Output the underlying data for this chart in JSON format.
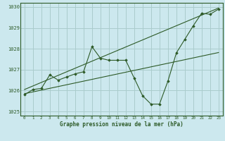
{
  "bg_color": "#cce8ee",
  "grid_color": "#aacccc",
  "line_color": "#2d5a27",
  "title": "Graphe pression niveau de la mer (hPa)",
  "xlim": [
    -0.5,
    23.5
  ],
  "ylim": [
    1024.8,
    1030.2
  ],
  "yticks": [
    1025,
    1026,
    1027,
    1028,
    1029,
    1030
  ],
  "xticks": [
    0,
    1,
    2,
    3,
    4,
    5,
    6,
    7,
    8,
    9,
    10,
    11,
    12,
    13,
    14,
    15,
    16,
    17,
    18,
    19,
    20,
    21,
    22,
    23
  ],
  "data_x": [
    0,
    1,
    2,
    3,
    4,
    5,
    6,
    7,
    8,
    9,
    10,
    11,
    12,
    13,
    14,
    15,
    16,
    17,
    18,
    19,
    20,
    21,
    22,
    23
  ],
  "data_y": [
    1025.8,
    1026.05,
    1026.1,
    1026.75,
    1026.5,
    1026.65,
    1026.8,
    1026.9,
    1028.1,
    1027.55,
    1027.45,
    1027.45,
    1027.45,
    1026.6,
    1025.75,
    1025.35,
    1025.35,
    1026.45,
    1027.8,
    1028.45,
    1029.1,
    1029.7,
    1029.65,
    1029.9
  ],
  "line1_x": [
    0,
    23
  ],
  "line1_y": [
    1026.05,
    1029.95
  ],
  "line2_x": [
    0,
    23
  ],
  "line2_y": [
    1025.85,
    1027.82
  ]
}
